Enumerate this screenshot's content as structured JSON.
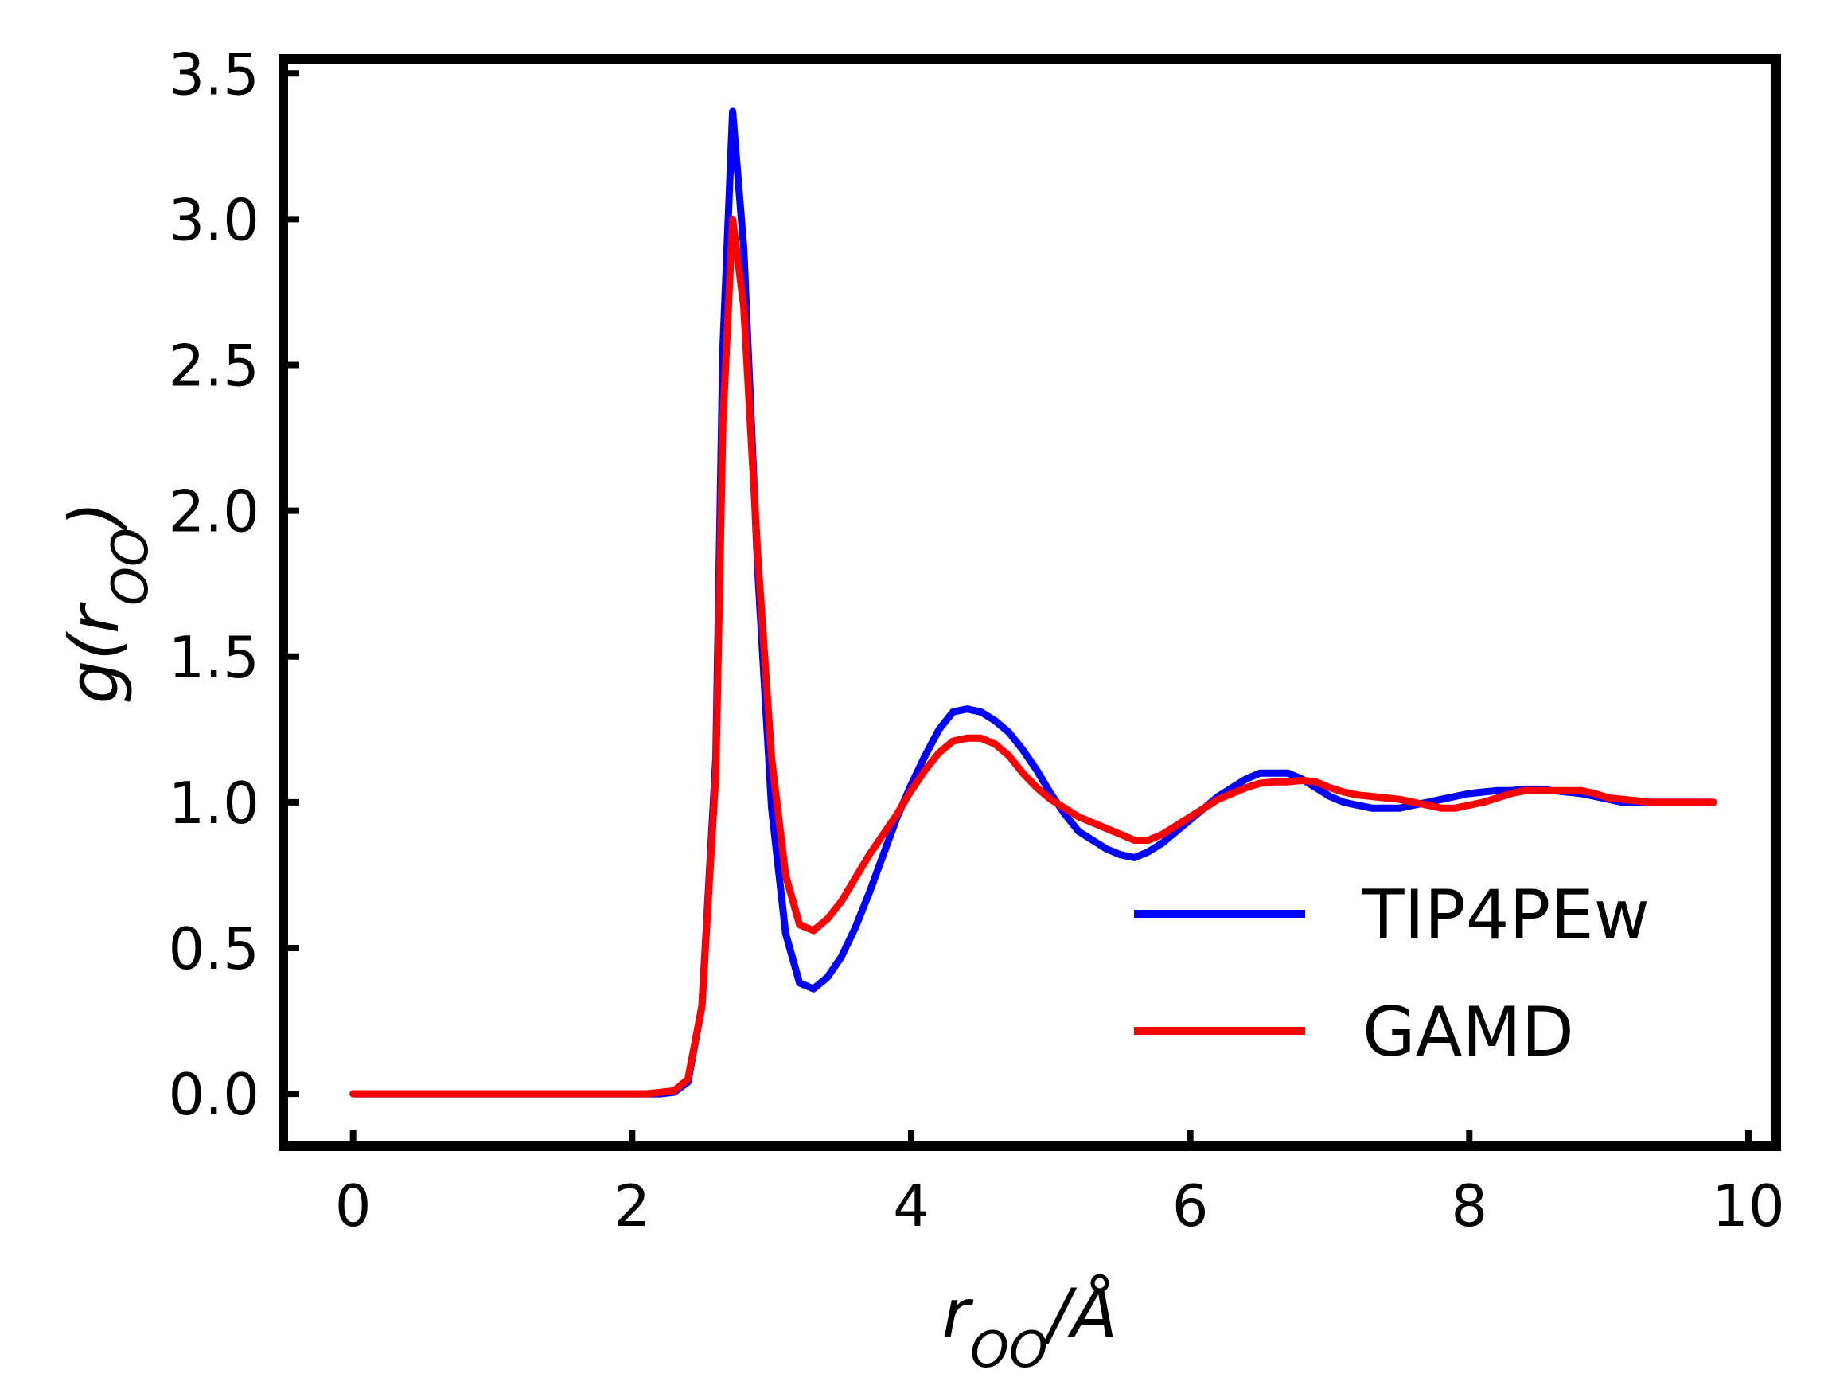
{
  "chart_data": {
    "type": "line",
    "title": "",
    "xlabel": "r_OO/Å",
    "ylabel": "g(r_OO)",
    "xlim": [
      -0.5,
      10.2
    ],
    "ylim": [
      -0.18,
      3.55
    ],
    "xticks": [
      0,
      2,
      4,
      6,
      8,
      10
    ],
    "xtick_labels": [
      "0",
      "2",
      "4",
      "6",
      "8",
      "10"
    ],
    "yticks": [
      0.0,
      0.5,
      1.0,
      1.5,
      2.0,
      2.5,
      3.0,
      3.5
    ],
    "ytick_labels": [
      "0.0",
      "0.5",
      "1.0",
      "1.5",
      "2.0",
      "2.5",
      "3.0",
      "3.5"
    ],
    "grid": false,
    "legend_position": "bottom-right",
    "series": [
      {
        "name": "TIP4PEw",
        "color": "#0000ff",
        "x": [
          0,
          0.5,
          1.0,
          1.5,
          2.0,
          2.1,
          2.2,
          2.3,
          2.4,
          2.5,
          2.6,
          2.65,
          2.72,
          2.8,
          2.9,
          3.0,
          3.1,
          3.2,
          3.3,
          3.4,
          3.5,
          3.6,
          3.7,
          3.8,
          3.9,
          4.0,
          4.1,
          4.2,
          4.3,
          4.4,
          4.5,
          4.6,
          4.7,
          4.8,
          4.9,
          5.0,
          5.1,
          5.2,
          5.3,
          5.4,
          5.5,
          5.6,
          5.7,
          5.8,
          5.9,
          6.0,
          6.1,
          6.2,
          6.3,
          6.4,
          6.5,
          6.6,
          6.7,
          6.8,
          6.9,
          7.0,
          7.1,
          7.2,
          7.3,
          7.4,
          7.5,
          7.6,
          7.7,
          7.8,
          7.9,
          8.0,
          8.1,
          8.2,
          8.3,
          8.4,
          8.5,
          8.6,
          8.7,
          8.8,
          8.9,
          9.0,
          9.1,
          9.2,
          9.3,
          9.4,
          9.5,
          9.6,
          9.7,
          9.75
        ],
        "y": [
          0.0,
          0.0,
          0.0,
          0.0,
          0.0,
          0.0,
          0.0,
          0.005,
          0.04,
          0.3,
          1.15,
          2.55,
          3.37,
          2.9,
          1.8,
          0.98,
          0.55,
          0.38,
          0.36,
          0.4,
          0.47,
          0.57,
          0.69,
          0.82,
          0.95,
          1.06,
          1.16,
          1.25,
          1.31,
          1.32,
          1.31,
          1.28,
          1.24,
          1.18,
          1.11,
          1.03,
          0.96,
          0.9,
          0.87,
          0.84,
          0.82,
          0.81,
          0.83,
          0.86,
          0.9,
          0.94,
          0.98,
          1.02,
          1.05,
          1.08,
          1.1,
          1.1,
          1.1,
          1.08,
          1.05,
          1.02,
          1.0,
          0.99,
          0.98,
          0.98,
          0.98,
          0.99,
          1.0,
          1.01,
          1.02,
          1.03,
          1.035,
          1.04,
          1.04,
          1.045,
          1.045,
          1.04,
          1.035,
          1.03,
          1.02,
          1.01,
          1.0,
          1.0,
          1.0,
          1.0,
          1.0,
          1.0,
          1.0,
          1.0
        ]
      },
      {
        "name": "GAMD",
        "color": "#ff0000",
        "x": [
          0,
          0.5,
          1.0,
          1.5,
          2.0,
          2.1,
          2.2,
          2.3,
          2.4,
          2.5,
          2.6,
          2.65,
          2.72,
          2.8,
          2.9,
          3.0,
          3.1,
          3.2,
          3.3,
          3.4,
          3.5,
          3.6,
          3.7,
          3.8,
          3.9,
          4.0,
          4.1,
          4.2,
          4.3,
          4.4,
          4.5,
          4.6,
          4.7,
          4.8,
          4.9,
          5.0,
          5.1,
          5.2,
          5.3,
          5.4,
          5.5,
          5.6,
          5.7,
          5.8,
          5.9,
          6.0,
          6.1,
          6.2,
          6.3,
          6.4,
          6.5,
          6.6,
          6.7,
          6.8,
          6.9,
          7.0,
          7.1,
          7.2,
          7.3,
          7.4,
          7.5,
          7.6,
          7.7,
          7.8,
          7.9,
          8.0,
          8.1,
          8.2,
          8.3,
          8.4,
          8.5,
          8.6,
          8.7,
          8.8,
          8.9,
          9.0,
          9.1,
          9.2,
          9.3,
          9.4,
          9.5,
          9.6,
          9.7,
          9.75
        ],
        "y": [
          0.0,
          0.0,
          0.0,
          0.0,
          0.0,
          0.0,
          0.005,
          0.01,
          0.05,
          0.3,
          1.1,
          2.3,
          3.0,
          2.7,
          1.85,
          1.15,
          0.75,
          0.58,
          0.56,
          0.6,
          0.66,
          0.74,
          0.82,
          0.89,
          0.96,
          1.04,
          1.11,
          1.17,
          1.21,
          1.22,
          1.22,
          1.2,
          1.16,
          1.1,
          1.05,
          1.01,
          0.98,
          0.95,
          0.93,
          0.91,
          0.89,
          0.87,
          0.87,
          0.89,
          0.92,
          0.95,
          0.98,
          1.01,
          1.03,
          1.05,
          1.065,
          1.07,
          1.07,
          1.075,
          1.07,
          1.05,
          1.035,
          1.025,
          1.02,
          1.015,
          1.01,
          1.0,
          0.99,
          0.98,
          0.98,
          0.99,
          1.0,
          1.015,
          1.03,
          1.04,
          1.04,
          1.04,
          1.04,
          1.04,
          1.03,
          1.015,
          1.01,
          1.005,
          1.0,
          1.0,
          1.0,
          1.0,
          1.0,
          1.0
        ]
      }
    ]
  }
}
